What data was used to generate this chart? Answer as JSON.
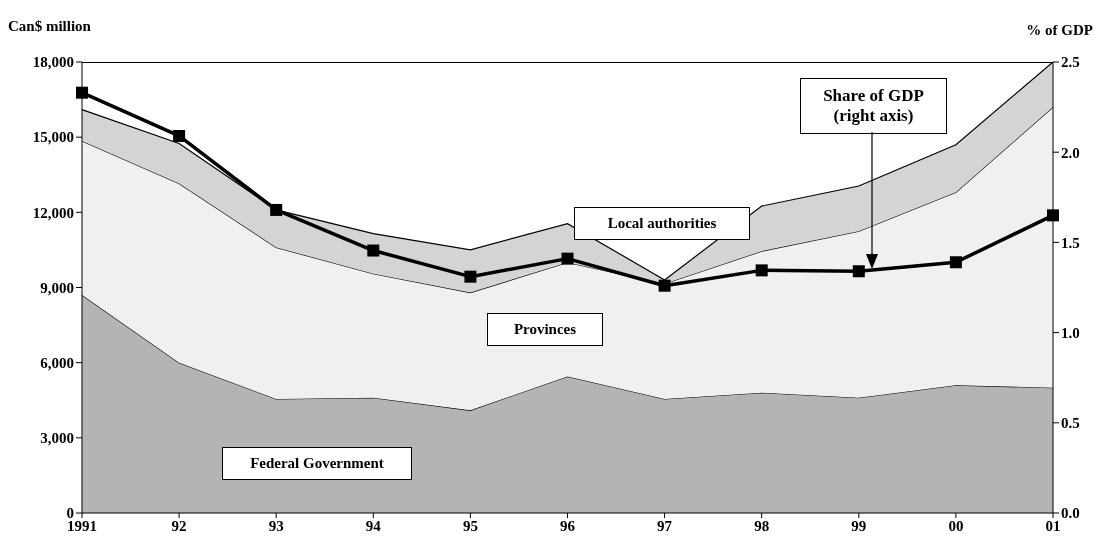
{
  "chart_data": {
    "type": "area",
    "stacked": true,
    "ylabel": "Can$ million",
    "y2label": "% of GDP",
    "categories": [
      "1991",
      "92",
      "93",
      "94",
      "95",
      "96",
      "97",
      "98",
      "99",
      "00",
      "01"
    ],
    "series": [
      {
        "name": "Federal Government",
        "color": "#b4b4b4",
        "values": [
          8700,
          6000,
          4550,
          4600,
          4100,
          5450,
          4550,
          4800,
          4600,
          5100,
          5000
        ]
      },
      {
        "name": "Provinces",
        "color": "#f0f0f0",
        "values": [
          6150,
          7150,
          6050,
          4950,
          4700,
          4550,
          4600,
          5650,
          6650,
          7700,
          11200
        ]
      },
      {
        "name": "Local authorities",
        "color": "#d4d4d4",
        "values": [
          1250,
          1600,
          1500,
          1600,
          1700,
          1550,
          150,
          1800,
          1800,
          1900,
          1800
        ]
      },
      {
        "name": "Share of GDP (right axis)",
        "type": "line",
        "axis": "y2",
        "marker": "square",
        "color": "#000000",
        "values": [
          2.33,
          2.09,
          1.68,
          1.455,
          1.31,
          1.41,
          1.26,
          1.345,
          1.34,
          1.39,
          1.65
        ]
      }
    ],
    "ylim": [
      0,
      18000
    ],
    "yticks": [
      {
        "value": 0,
        "label": "0"
      },
      {
        "value": 3000,
        "label": "3,000"
      },
      {
        "value": 6000,
        "label": "6,000"
      },
      {
        "value": 9000,
        "label": "9,000"
      },
      {
        "value": 12000,
        "label": "12,000"
      },
      {
        "value": 15000,
        "label": "15,000"
      },
      {
        "value": 18000,
        "label": "18,000"
      }
    ],
    "y2lim": [
      0,
      2.5
    ],
    "y2ticks": [
      {
        "value": 0,
        "label": "0.0"
      },
      {
        "value": 0.5,
        "label": "0.5"
      },
      {
        "value": 1,
        "label": "1.0"
      },
      {
        "value": 1.5,
        "label": "1.5"
      },
      {
        "value": 2,
        "label": "2.0"
      },
      {
        "value": 2.5,
        "label": "2.5"
      }
    ],
    "legend": false,
    "line_style": "solid"
  }
}
